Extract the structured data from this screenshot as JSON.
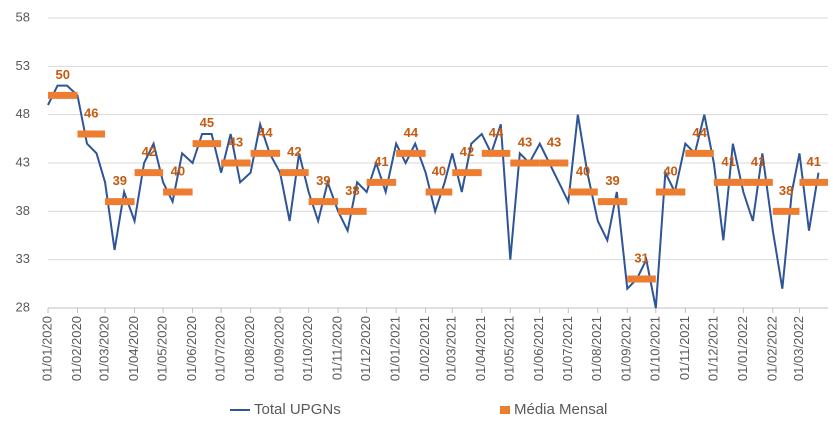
{
  "chart_data": {
    "type": "line",
    "ylim": [
      28,
      58
    ],
    "yticks": [
      28,
      33,
      38,
      43,
      48,
      53,
      58
    ],
    "grid": true,
    "xlim": [
      "01/01/2020",
      "31/03/2022"
    ],
    "xticks": [
      "01/01/2020",
      "01/02/2020",
      "01/03/2020",
      "01/04/2020",
      "01/05/2020",
      "01/06/2020",
      "01/07/2020",
      "01/08/2020",
      "01/09/2020",
      "01/10/2020",
      "01/11/2020",
      "01/12/2020",
      "01/01/2021",
      "01/02/2021",
      "01/03/2021",
      "01/04/2021",
      "01/05/2021",
      "01/06/2021",
      "01/07/2021",
      "01/08/2021",
      "01/09/2021",
      "01/10/2021",
      "01/11/2021",
      "01/12/2021",
      "01/01/2022",
      "01/02/2022",
      "01/03/2022"
    ],
    "legend": "bottom",
    "series": [
      {
        "name": "Total UPGNs",
        "color": "#2f5597",
        "x": [
          "01/01/2020",
          "11/01/2020",
          "21/01/2020",
          "01/02/2020",
          "11/02/2020",
          "21/02/2020",
          "01/03/2020",
          "11/03/2020",
          "21/03/2020",
          "01/04/2020",
          "11/04/2020",
          "21/04/2020",
          "01/05/2020",
          "11/05/2020",
          "21/05/2020",
          "01/06/2020",
          "11/06/2020",
          "21/06/2020",
          "01/07/2020",
          "11/07/2020",
          "21/07/2020",
          "01/08/2020",
          "11/08/2020",
          "21/08/2020",
          "01/09/2020",
          "11/09/2020",
          "21/09/2020",
          "01/10/2020",
          "11/10/2020",
          "21/10/2020",
          "01/11/2020",
          "11/11/2020",
          "21/11/2020",
          "01/12/2020",
          "11/12/2020",
          "21/12/2020",
          "01/01/2021",
          "11/01/2021",
          "21/01/2021",
          "01/02/2021",
          "11/02/2021",
          "21/02/2021",
          "01/03/2021",
          "11/03/2021",
          "21/03/2021",
          "01/04/2021",
          "11/04/2021",
          "21/04/2021",
          "01/05/2021",
          "11/05/2021",
          "21/05/2021",
          "01/06/2021",
          "11/06/2021",
          "21/06/2021",
          "01/07/2021",
          "11/07/2021",
          "21/07/2021",
          "01/08/2021",
          "11/08/2021",
          "21/08/2021",
          "01/09/2021",
          "11/09/2021",
          "21/09/2021",
          "01/10/2021",
          "11/10/2021",
          "21/10/2021",
          "01/11/2021",
          "11/11/2021",
          "21/11/2021",
          "01/12/2021",
          "11/12/2021",
          "21/12/2021",
          "01/01/2022",
          "11/01/2022",
          "21/01/2022",
          "01/02/2022",
          "11/02/2022",
          "21/02/2022",
          "01/03/2022",
          "11/03/2022",
          "21/03/2022"
        ],
        "values": [
          49,
          51,
          51,
          50,
          45,
          44,
          41,
          34,
          40,
          37,
          43,
          45,
          41,
          39,
          44,
          43,
          46,
          46,
          42,
          46,
          41,
          42,
          47,
          44,
          42,
          37,
          44,
          40,
          37,
          41,
          38,
          36,
          41,
          40,
          43,
          40,
          45,
          43,
          45,
          42,
          38,
          41,
          44,
          40,
          45,
          46,
          44,
          47,
          33,
          44,
          43,
          45,
          43,
          41,
          39,
          48,
          42,
          37,
          35,
          40,
          30,
          31,
          33,
          28,
          42,
          40,
          45,
          44,
          48,
          43,
          35,
          45,
          40,
          37,
          44,
          36,
          30,
          40,
          44,
          36,
          42
        ]
      },
      {
        "name": "Média Mensal",
        "color": "#ed7d31",
        "style": "segment",
        "x": [
          "01/01/2020",
          "01/02/2020",
          "01/03/2020",
          "01/04/2020",
          "01/05/2020",
          "01/06/2020",
          "01/07/2020",
          "01/08/2020",
          "01/09/2020",
          "01/10/2020",
          "01/11/2020",
          "01/12/2020",
          "01/01/2021",
          "01/02/2021",
          "01/03/2021",
          "01/04/2021",
          "01/05/2021",
          "01/06/2021",
          "01/07/2021",
          "01/08/2021",
          "01/09/2021",
          "01/10/2021",
          "01/11/2021",
          "01/12/2021",
          "01/01/2022",
          "01/02/2022",
          "01/03/2022"
        ],
        "values": [
          50,
          46,
          39,
          42,
          40,
          45,
          43,
          44,
          42,
          39,
          38,
          41,
          44,
          40,
          42,
          44,
          43,
          43,
          40,
          39,
          31,
          40,
          44,
          41,
          41,
          38,
          41
        ]
      }
    ]
  }
}
